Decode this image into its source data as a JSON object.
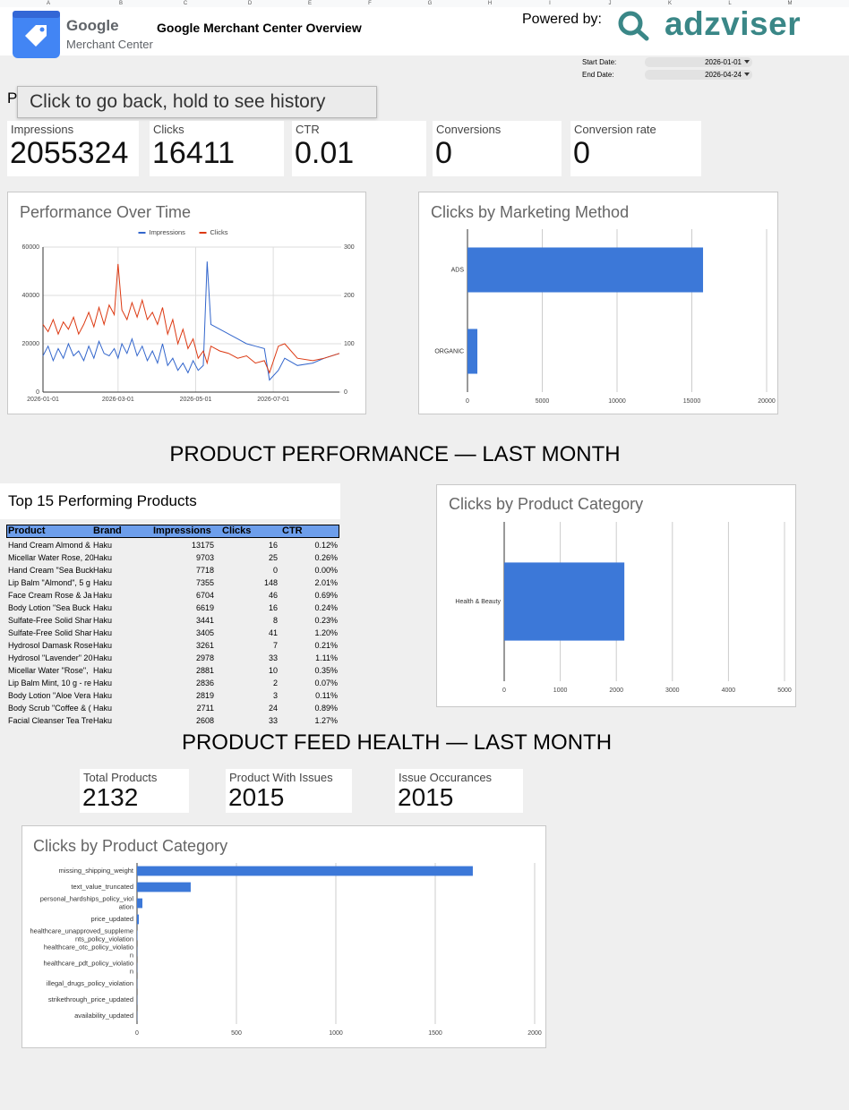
{
  "sheet": {
    "columns": [
      "A",
      "B",
      "C",
      "D",
      "E",
      "F",
      "G",
      "H",
      "I",
      "J",
      "K",
      "L",
      "M"
    ]
  },
  "header": {
    "logo_line1": "Google",
    "logo_line2": "Merchant Center",
    "title": "Google Merchant Center Overview",
    "powered_by": "Powered by:",
    "brand": "adzviser"
  },
  "dates": {
    "start_label": "Start Date:",
    "start": "2026-01-01",
    "end_label": "End Date:",
    "end": "2026-04-24"
  },
  "partial_text": "P",
  "tooltip": "Click to go back, hold to see history",
  "kpis": [
    {
      "label": "Impressions",
      "value": 2055324
    },
    {
      "label": "Clicks",
      "value": 16411
    },
    {
      "label": "CTR",
      "value": 0.01
    },
    {
      "label": "Conversions",
      "value": 0
    },
    {
      "label": "Conversion rate",
      "value": 0
    }
  ],
  "chart_data": [
    {
      "type": "line",
      "title": "Performance Over Time",
      "x": [
        "2026-01-01",
        "2026-01-05",
        "2026-01-09",
        "2026-01-13",
        "2026-01-17",
        "2026-01-21",
        "2026-01-25",
        "2026-01-29",
        "2026-02-02",
        "2026-02-06",
        "2026-02-10",
        "2026-02-14",
        "2026-02-18",
        "2026-02-22",
        "2026-02-26",
        "2026-03-01",
        "2026-03-04",
        "2026-03-08",
        "2026-03-12",
        "2026-03-16",
        "2026-03-20",
        "2026-03-24",
        "2026-03-28",
        "2026-04-01",
        "2026-04-05",
        "2026-04-09",
        "2026-04-13",
        "2026-04-17",
        "2026-04-21",
        "2026-04-25",
        "2026-04-29",
        "2026-05-03",
        "2026-05-07",
        "2026-05-10",
        "2026-05-13",
        "2026-05-20",
        "2026-05-27",
        "2026-06-03",
        "2026-06-10",
        "2026-06-17",
        "2026-06-24",
        "2026-06-28",
        "2026-07-05",
        "2026-07-10",
        "2026-07-20",
        "2026-08-01",
        "2026-08-10",
        "2026-08-22"
      ],
      "xlim": [
        "2026-01-01",
        "2026-08-22"
      ],
      "xticks": [
        "2026-01-01",
        "2026-03-01",
        "2026-05-01",
        "2026-07-01"
      ],
      "ylim": [
        0,
        60000
      ],
      "yticks": [
        0,
        20000,
        40000,
        60000
      ],
      "y2lim": [
        0,
        300
      ],
      "y2ticks": [
        0,
        100,
        200,
        300
      ],
      "grid": true,
      "legend": "top",
      "series": [
        {
          "name": "Impressions",
          "color": "#3366cc",
          "values": [
            15000,
            19000,
            13000,
            18000,
            14000,
            20000,
            15000,
            17000,
            13000,
            19000,
            14000,
            21000,
            16000,
            15000,
            18000,
            14000,
            20000,
            16000,
            22000,
            15000,
            19000,
            13000,
            17000,
            12000,
            20000,
            11000,
            14000,
            9000,
            12000,
            8000,
            13000,
            9000,
            11000,
            54000,
            28000,
            26000,
            24000,
            22000,
            20000,
            19000,
            18000,
            5000,
            9000,
            14000,
            11000,
            12000,
            14000,
            16000
          ]
        },
        {
          "name": "Clicks",
          "color": "#dc3912",
          "axis": "y2",
          "values": [
            140,
            125,
            150,
            120,
            145,
            130,
            155,
            120,
            140,
            165,
            135,
            175,
            140,
            180,
            160,
            265,
            170,
            150,
            185,
            155,
            190,
            150,
            165,
            140,
            175,
            120,
            150,
            100,
            130,
            90,
            110,
            70,
            85,
            60,
            95,
            85,
            80,
            70,
            75,
            60,
            65,
            40,
            95,
            100,
            70,
            65,
            70,
            80
          ]
        }
      ]
    },
    {
      "type": "hbar",
      "title": "Clicks by Marketing Method",
      "categories": [
        "ADS",
        "ORGANIC"
      ],
      "values": [
        15750,
        660
      ],
      "color": "#3c78d8",
      "xlim": [
        0,
        20000
      ],
      "xticks": [
        0,
        5000,
        10000,
        15000,
        20000
      ],
      "grid": true
    },
    {
      "type": "hbar",
      "title": "Clicks by Product Category",
      "categories": [
        "Health & Beauty"
      ],
      "values": [
        2143
      ],
      "color": "#3c78d8",
      "xlim": [
        0,
        5000
      ],
      "xticks": [
        0,
        1000,
        2000,
        3000,
        4000,
        5000
      ],
      "grid": true
    },
    {
      "type": "hbar",
      "title": "Clicks by Product Category",
      "categories": [
        "missing_shipping_weight",
        "text_value_truncated",
        "personal_hardships_policy_violation",
        "price_updated",
        "healthcare_unapproved_supplements_policy_violation",
        "healthcare_otc_policy_violation",
        "healthcare_pdt_policy_violation",
        "illegal_drugs_policy_violation",
        "strikethrough_price_updated",
        "availability_updated"
      ],
      "values": [
        1689,
        270,
        27,
        9,
        2,
        1,
        1,
        1,
        1,
        1
      ],
      "color": "#3c78d8",
      "xlim": [
        0,
        2000
      ],
      "xticks": [
        0,
        500,
        1000,
        1500,
        2000
      ],
      "grid": true
    }
  ],
  "sections": [
    "PRODUCT PERFORMANCE — LAST MONTH",
    "PRODUCT FEED HEALTH — LAST MONTH"
  ],
  "table": {
    "title": "Top 15 Performing Products",
    "columns": [
      "Product",
      "Brand",
      "Impressions",
      "Clicks",
      "CTR"
    ],
    "rows": [
      [
        "Hand Cream Almond & ",
        "Haku",
        13175,
        16,
        "0.12%"
      ],
      [
        "Micellar Water Rose, 20",
        "Haku",
        9703,
        25,
        "0.26%"
      ],
      [
        "Hand Cream \"Sea Buck",
        "Haku",
        7718,
        0,
        "0.00%"
      ],
      [
        "Lip Balm \"Almond\", 5 g",
        "Haku",
        7355,
        148,
        "2.01%"
      ],
      [
        "Face Cream Rose & Ja",
        "Haku",
        6704,
        46,
        "0.69%"
      ],
      [
        "Body Lotion \"Sea Buck",
        "Haku",
        6619,
        16,
        "0.24%"
      ],
      [
        "Sulfate-Free Solid Shar",
        "Haku",
        3441,
        8,
        "0.23%"
      ],
      [
        "Sulfate-Free Solid Shar",
        "Haku",
        3405,
        41,
        "1.20%"
      ],
      [
        "Hydrosol Damask Rose",
        "Haku",
        3261,
        7,
        "0.21%"
      ],
      [
        "Hydrosol \"Lavender\" 20",
        "Haku",
        2978,
        33,
        "1.11%"
      ],
      [
        "Micellar Water \"Rose\", ",
        "Haku",
        2881,
        10,
        "0.35%"
      ],
      [
        "Lip Balm Mint, 10 g - re",
        "Haku",
        2836,
        2,
        "0.07%"
      ],
      [
        "Body Lotion \"Aloe Vera",
        "Haku",
        2819,
        3,
        "0.11%"
      ],
      [
        "Body Scrub \"Coffee & (",
        "Haku",
        2711,
        24,
        "0.89%"
      ],
      [
        "Facial Cleanser Tea Tre",
        "Haku",
        2608,
        33,
        "1.27%"
      ]
    ]
  },
  "feed_kpis": [
    {
      "label": "Total Products",
      "value": 2132
    },
    {
      "label": "Product With Issues",
      "value": 2015
    },
    {
      "label": "Issue Occurances",
      "value": 2015
    }
  ]
}
